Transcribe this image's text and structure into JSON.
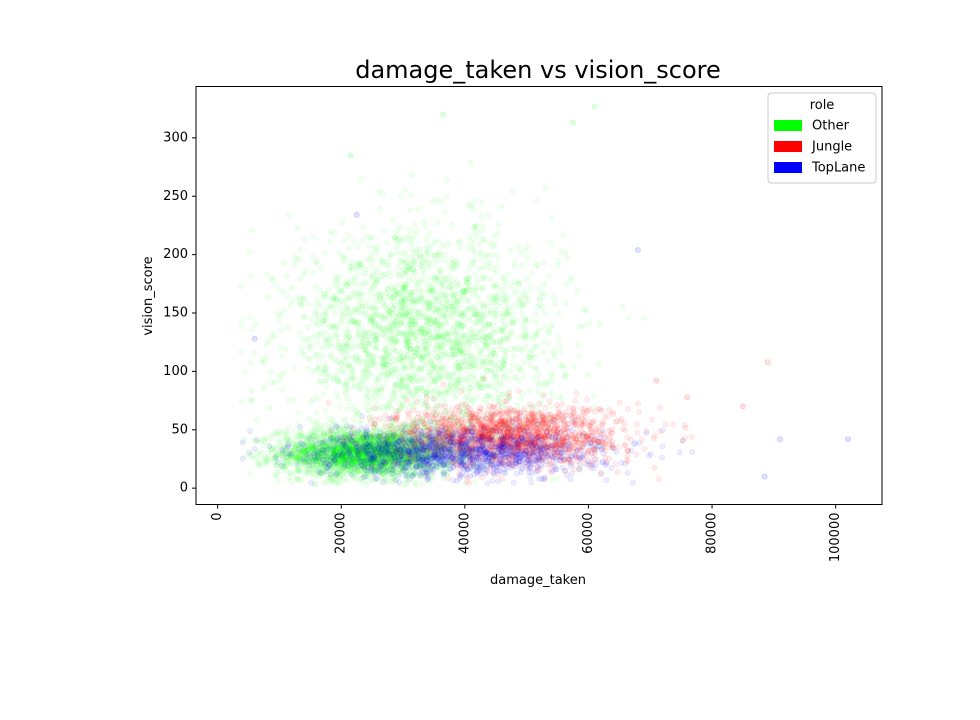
{
  "chart_data": {
    "type": "scatter",
    "title": "damage_taken vs vision_score",
    "xlabel": "damage_taken",
    "ylabel": "vision_score",
    "xlim": [
      -3500,
      107500
    ],
    "ylim": [
      -14,
      344
    ],
    "xticks": [
      0,
      20000,
      40000,
      60000,
      80000,
      100000
    ],
    "xtick_labels": [
      "0",
      "20000",
      "40000",
      "60000",
      "80000",
      "100000"
    ],
    "yticks": [
      0,
      50,
      100,
      150,
      200,
      250,
      300
    ],
    "ytick_labels": [
      "0",
      "50",
      "100",
      "150",
      "200",
      "250",
      "300"
    ],
    "grid": false,
    "legend": {
      "title": "role",
      "placement": "top-right",
      "entries": [
        {
          "label": "Other",
          "color": "#00ff00"
        },
        {
          "label": "Jungle",
          "color": "#ff0000"
        },
        {
          "label": "TopLane",
          "color": "#0000ff"
        }
      ]
    },
    "series": [
      {
        "name": "Other",
        "color": "#00ff00",
        "point_alpha": 0.06,
        "clusters": [
          {
            "x_mean": 24000,
            "x_sd": 7000,
            "y_mean": 30,
            "y_sd": 10,
            "count": 2600
          },
          {
            "x_mean": 33000,
            "x_sd": 11000,
            "y_mean": 130,
            "y_sd": 45,
            "count": 2200
          }
        ],
        "extreme_points": [
          [
            61000,
            327
          ],
          [
            36500,
            320
          ],
          [
            57500,
            313
          ],
          [
            21500,
            285
          ],
          [
            5500,
            75
          ]
        ]
      },
      {
        "name": "Jungle",
        "color": "#ff0000",
        "point_alpha": 0.07,
        "clusters": [
          {
            "x_mean": 47000,
            "x_sd": 9000,
            "y_mean": 45,
            "y_sd": 13,
            "count": 1700
          }
        ],
        "extreme_points": [
          [
            89000,
            108
          ],
          [
            76000,
            78
          ],
          [
            71000,
            92
          ],
          [
            85000,
            70
          ]
        ]
      },
      {
        "name": "TopLane",
        "color": "#0000ff",
        "point_alpha": 0.07,
        "clusters": [
          {
            "x_mean": 38000,
            "x_sd": 12000,
            "y_mean": 30,
            "y_sd": 10,
            "count": 1400
          }
        ],
        "extreme_points": [
          [
            102000,
            42
          ],
          [
            91000,
            42
          ],
          [
            68000,
            204
          ],
          [
            6000,
            128
          ],
          [
            88500,
            10
          ],
          [
            22500,
            234
          ]
        ]
      }
    ]
  }
}
